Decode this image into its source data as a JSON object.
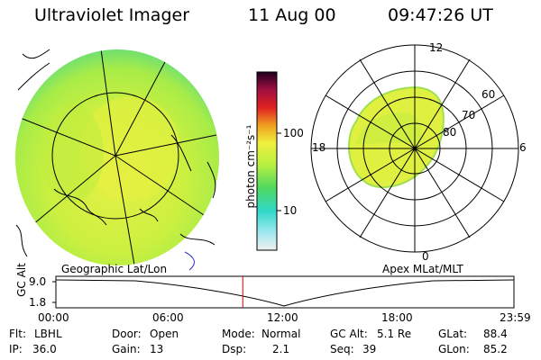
{
  "header": {
    "instrument": "Ultraviolet Imager",
    "date": "11 Aug 00",
    "time": "09:47:26 UT"
  },
  "colorbar": {
    "unit_label": "photon cm⁻²s⁻¹",
    "tick_100": "100",
    "tick_10": "10"
  },
  "polar": {
    "mlt_12": "12",
    "mlt_18": "18",
    "mlt_6": "6",
    "mlt_0": "0",
    "lat_60": "60",
    "lat_70": "70",
    "lat_80": "80"
  },
  "panel_labels": {
    "left": "Geographic Lat/Lon",
    "right": "Apex MLat/MLT"
  },
  "altitude_plot": {
    "axis_label": "GC Alt",
    "y_top": "9.0",
    "y_bottom": "1.8",
    "x_ticks": [
      "00:00",
      "06:00",
      "12:00",
      "18:00",
      "23:59"
    ],
    "marker_time_fraction": 0.408
  },
  "status": {
    "flt_label": "Flt:",
    "flt_value": "LBHL",
    "ip_label": "IP:",
    "ip_value": "36.0",
    "door_label": "Door:",
    "door_value": "Open",
    "gain_label": "Gain:",
    "gain_value": "13",
    "mode_label": "Mode:",
    "mode_value": "Normal",
    "dsp_label": "Dsp:",
    "dsp_value": "2.1",
    "gcalt_label": "GC Alt:",
    "gcalt_value": "5.1 Re",
    "seq_label": "Seq:",
    "seq_value": "39",
    "glat_label": "GLat:",
    "glat_value": "88.4",
    "glon_label": "GLon:",
    "glon_value": "85.2"
  },
  "colors": {
    "image_green": "#b8f040",
    "image_yellow": "#e8f040",
    "image_cyan": "#40e0a0",
    "marker_red": "#e00000"
  }
}
